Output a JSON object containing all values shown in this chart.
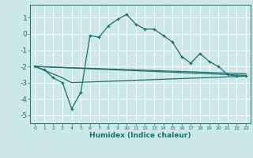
{
  "xlabel": "Humidex (Indice chaleur)",
  "background_color": "#cce8e8",
  "grid_color": "#ffffff",
  "line_color": "#1a7070",
  "xlim": [
    -0.5,
    23.5
  ],
  "ylim": [
    -5.5,
    1.8
  ],
  "yticks": [
    -5,
    -4,
    -3,
    -2,
    -1,
    0,
    1
  ],
  "xticks": [
    0,
    1,
    2,
    3,
    4,
    5,
    6,
    7,
    8,
    9,
    10,
    11,
    12,
    13,
    14,
    15,
    16,
    17,
    18,
    19,
    20,
    21,
    22,
    23
  ],
  "line1_x": [
    0,
    1,
    2,
    3,
    4,
    5,
    6,
    7,
    8,
    9,
    10,
    11,
    12,
    13,
    14,
    15,
    16,
    17,
    18,
    19,
    20,
    21,
    22,
    23
  ],
  "line1_y": [
    -2.0,
    -2.2,
    -2.7,
    -3.0,
    -4.6,
    -3.6,
    -0.1,
    -0.2,
    0.5,
    0.9,
    1.2,
    0.6,
    0.3,
    0.3,
    -0.1,
    -0.5,
    -1.4,
    -1.8,
    -1.2,
    -1.7,
    -2.0,
    -2.5,
    -2.6,
    -2.6
  ],
  "line2_x": [
    0,
    3,
    4,
    23
  ],
  "line2_y": [
    -2.0,
    -2.7,
    -3.0,
    -2.6
  ],
  "line3_x": [
    0,
    23
  ],
  "line3_y": [
    -2.0,
    -2.55
  ],
  "line4_x": [
    0,
    23
  ],
  "line4_y": [
    -2.0,
    -2.45
  ]
}
